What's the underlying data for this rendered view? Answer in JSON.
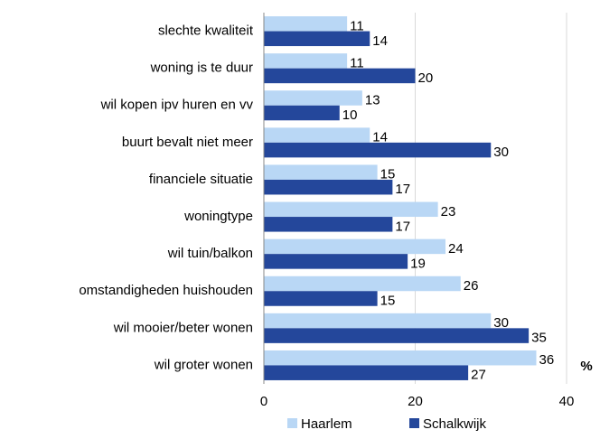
{
  "chart_data": {
    "type": "bar",
    "orientation": "horizontal",
    "xlabel": "%",
    "categories": [
      "slechte kwaliteit",
      "woning is te duur",
      "wil kopen ipv huren en vv",
      "buurt bevalt niet meer",
      "financiele situatie",
      "woningtype",
      "wil tuin/balkon",
      "omstandigheden huishouden",
      "wil mooier/beter wonen",
      "wil groter wonen"
    ],
    "series": [
      {
        "name": "Haarlem",
        "color": "#b9d7f5",
        "values": [
          11,
          11,
          13,
          14,
          15,
          23,
          24,
          26,
          30,
          36
        ]
      },
      {
        "name": "Schalkwijk",
        "color": "#24479b",
        "values": [
          14,
          20,
          10,
          30,
          17,
          17,
          19,
          15,
          35,
          27
        ]
      }
    ],
    "xlim": [
      0,
      40
    ],
    "xticks": [
      0,
      20,
      40
    ],
    "grid": true,
    "legend": "bottom"
  }
}
